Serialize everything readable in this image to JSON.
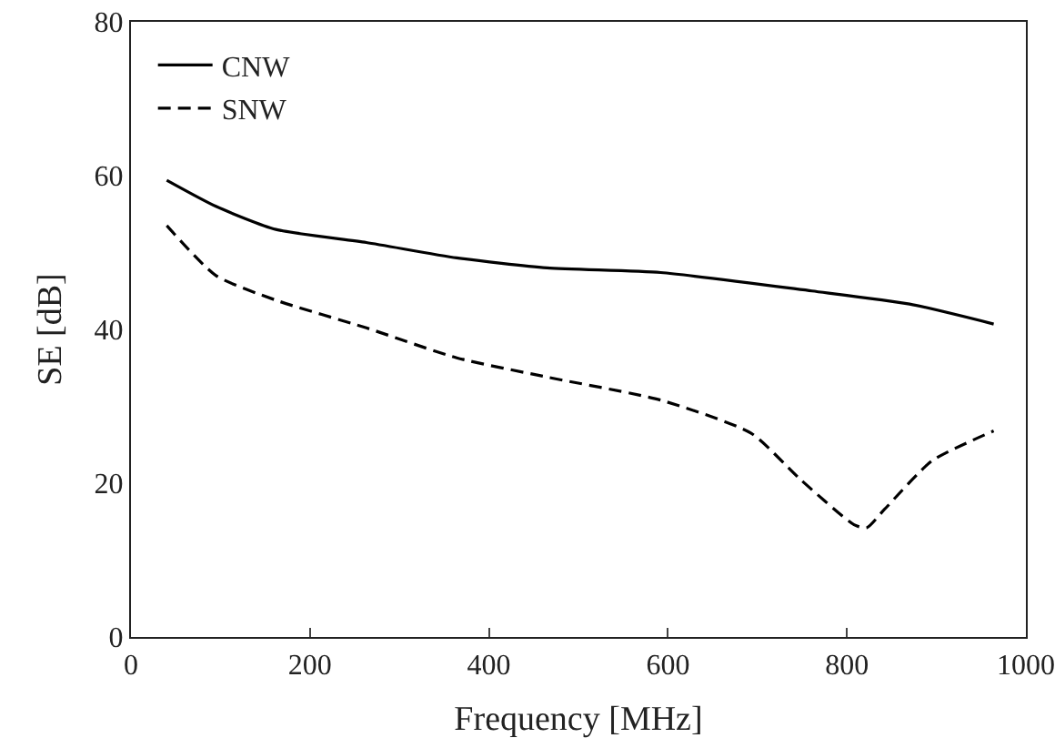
{
  "chart_data": {
    "type": "line",
    "xlabel": "Frequency [MHz]",
    "ylabel": "SE [dB]",
    "xlim": [
      0,
      1000
    ],
    "ylim": [
      0,
      80
    ],
    "xticks": [
      0,
      200,
      400,
      600,
      800,
      1000
    ],
    "yticks": [
      0,
      20,
      40,
      60,
      80
    ],
    "grid": false,
    "legend": "top left",
    "marker": "none",
    "series": [
      {
        "name": "CNW",
        "color": "#000000",
        "line_style": "solid",
        "x": [
          40,
          95,
          162,
          263,
          364,
          465,
          592,
          761,
          870,
          964
        ],
        "values": [
          59.4,
          56,
          53,
          51.3,
          49.3,
          48,
          47.4,
          45,
          43.3,
          40.7
        ]
      },
      {
        "name": "SNW",
        "color": "#000000",
        "line_style": "dashed",
        "x": [
          40,
          95,
          162,
          263,
          364,
          465,
          592,
          693,
          747,
          808,
          822,
          842,
          895,
          964
        ],
        "values": [
          53.5,
          47,
          43.8,
          40.2,
          36.3,
          33.8,
          30.8,
          26.5,
          20.6,
          14.6,
          14.2,
          16.6,
          22.9,
          26.8
        ]
      }
    ]
  }
}
